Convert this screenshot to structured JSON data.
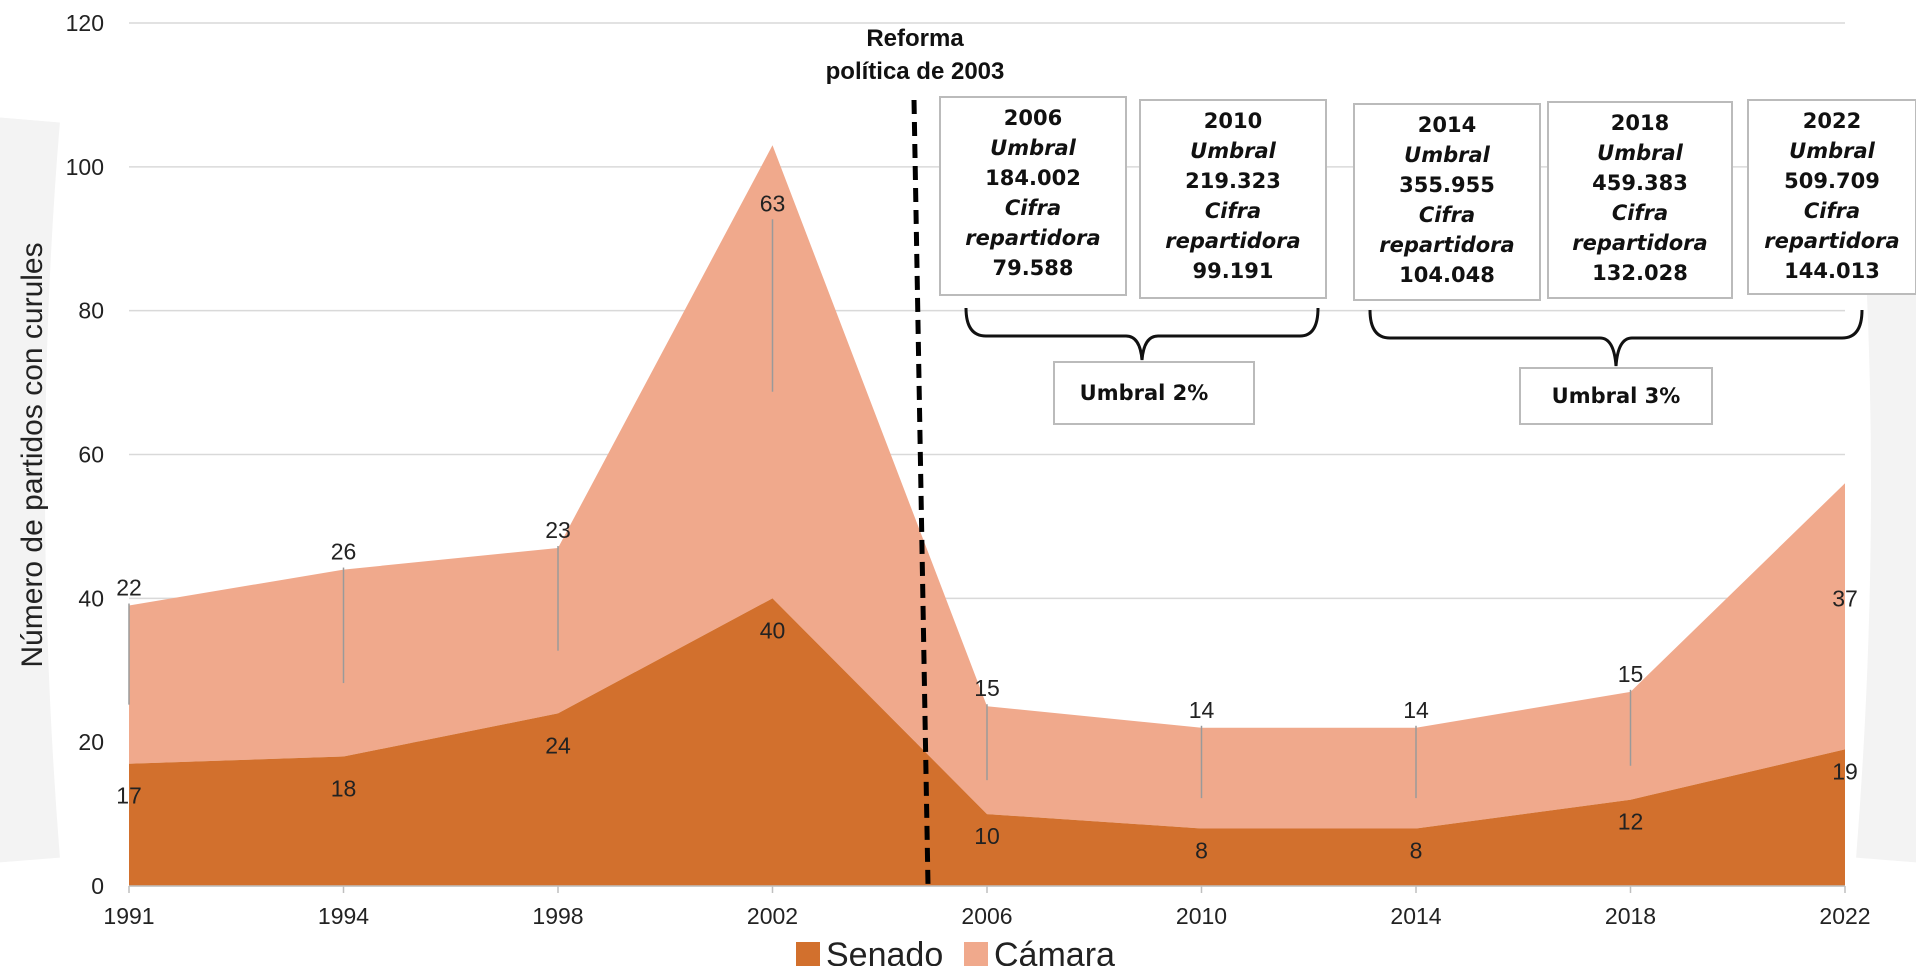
{
  "chart_data": {
    "type": "area",
    "ylabel": "Número de partidos con curules",
    "xlabel": "",
    "ylim": [
      0,
      120
    ],
    "yticks": [
      "0",
      "20",
      "40",
      "60",
      "80",
      "100",
      "120"
    ],
    "categories": [
      "1991",
      "1994",
      "1998",
      "2002",
      "2006",
      "2010",
      "2014",
      "2018",
      "2022"
    ],
    "stacked": true,
    "grid": true,
    "legend_position": "bottom",
    "series": [
      {
        "name": "Senado",
        "color": "#D2702D",
        "values": [
          17,
          18,
          24,
          40,
          10,
          8,
          8,
          12,
          19
        ]
      },
      {
        "name": "Cámara",
        "color": "#F0A98C",
        "values": [
          22,
          26,
          23,
          63,
          15,
          14,
          14,
          15,
          37
        ]
      }
    ],
    "annotations": {
      "reform_label_line1": "Reforma",
      "reform_label_line2": "política de 2003",
      "reform_x": 2004.9,
      "boxes": [
        {
          "year": "2006",
          "umbral_label": "Umbral",
          "umbral": "184.002",
          "cifra_label1": "Cifra",
          "cifra_label2": "repartidora",
          "cifra": "79.588"
        },
        {
          "year": "2010",
          "umbral_label": "Umbral",
          "umbral": "219.323",
          "cifra_label1": "Cifra",
          "cifra_label2": "repartidora",
          "cifra": "99.191"
        },
        {
          "year": "2014",
          "umbral_label": "Umbral",
          "umbral": "355.955",
          "cifra_label1": "Cifra",
          "cifra_label2": "repartidora",
          "cifra": "104.048"
        },
        {
          "year": "2018",
          "umbral_label": "Umbral",
          "umbral": "459.383",
          "cifra_label1": "Cifra",
          "cifra_label2": "repartidora",
          "cifra": "132.028"
        },
        {
          "year": "2022",
          "umbral_label": "Umbral",
          "umbral": "509.709",
          "cifra_label1": "Cifra",
          "cifra_label2": "repartidora",
          "cifra": "144.013"
        }
      ],
      "group1_label": "Umbral 2%",
      "group2_label": "Umbral 3%"
    }
  }
}
